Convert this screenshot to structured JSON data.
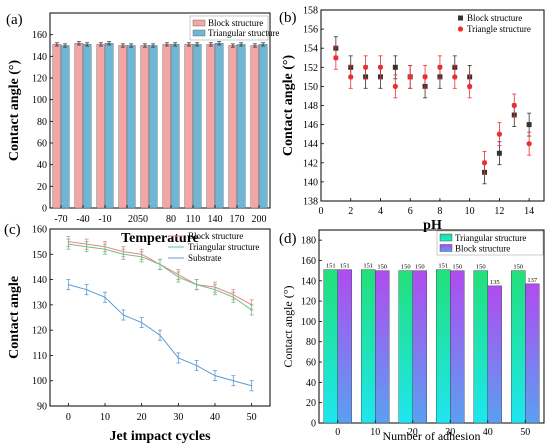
{
  "colors": {
    "block_bar": "#f4a5a5",
    "triangle_bar": "#6fb7d6",
    "block_marker": "#333333",
    "triangle_marker": "#e83030",
    "substrate_line": "#5b9bd5",
    "block_line": "#f08080",
    "triangle_line": "#6dbf8b",
    "triangle_grad_top": "#22e07a",
    "triangle_grad_bottom": "#1ee6f0",
    "block_grad_top": "#b04cf0",
    "block_grad_bottom": "#5aa0f0"
  },
  "chart_data": [
    {
      "panel": "(a)",
      "type": "bar",
      "xlabel": "Temperature",
      "ylabel": "Contact angle (°)",
      "categories": [
        "-70",
        "-40",
        "-10",
        "20",
        "50",
        "80",
        "110",
        "140",
        "170",
        "200"
      ],
      "category_display": [
        "-70",
        "-40",
        "-10",
        "2050",
        "80",
        "110",
        "140",
        "170",
        "200"
      ],
      "series": [
        {
          "name": "Block structure",
          "values": [
            151,
            152,
            151,
            150,
            150,
            151,
            151,
            151,
            150,
            150
          ],
          "errors": [
            1.5,
            1.5,
            1.5,
            1.5,
            1.5,
            1.5,
            1.5,
            1.5,
            1.5,
            1.5
          ]
        },
        {
          "name": "Triangular structure",
          "values": [
            150,
            151,
            152,
            150,
            150,
            151,
            151,
            152,
            151,
            151
          ],
          "errors": [
            1.5,
            1.5,
            1.5,
            1.5,
            1.5,
            1.5,
            1.5,
            1.5,
            1.5,
            1.5
          ]
        }
      ],
      "ylim": [
        0,
        180
      ],
      "yticks": [
        0,
        20,
        40,
        60,
        80,
        100,
        120,
        140,
        160
      ],
      "legend": "top-right"
    },
    {
      "panel": "(b)",
      "type": "scatter",
      "xlabel": "pH",
      "ylabel": "Contact angle (°)",
      "xlim": [
        0,
        15
      ],
      "ylim": [
        138,
        158
      ],
      "xticks": [
        0,
        2,
        4,
        6,
        8,
        10,
        12,
        14
      ],
      "yticks": [
        138,
        140,
        142,
        144,
        146,
        148,
        150,
        152,
        154,
        156,
        158
      ],
      "series": [
        {
          "name": "Block structure",
          "x": [
            1,
            2,
            3,
            4,
            5,
            6,
            7,
            8,
            9,
            10,
            11,
            12,
            13,
            14
          ],
          "values": [
            154,
            152,
            151,
            151,
            152,
            151,
            150,
            151,
            152,
            151,
            141,
            143,
            147,
            146
          ],
          "errors": [
            1.2,
            1.2,
            1.2,
            1.2,
            1.2,
            1.2,
            1.2,
            1.2,
            1.2,
            1.2,
            1.2,
            1.2,
            1.2,
            1.2
          ]
        },
        {
          "name": "Triangle structure",
          "x": [
            1,
            2,
            3,
            4,
            5,
            6,
            7,
            8,
            9,
            10,
            11,
            12,
            13,
            14
          ],
          "values": [
            153,
            151,
            152,
            152,
            150,
            151,
            151,
            152,
            151,
            150,
            142,
            145,
            148,
            144
          ],
          "errors": [
            1.2,
            1.2,
            1.2,
            1.2,
            1.2,
            1.2,
            1.2,
            1.2,
            1.2,
            1.2,
            1.2,
            1.2,
            1.2,
            1.2
          ]
        }
      ],
      "legend": "top-right"
    },
    {
      "panel": "(c)",
      "type": "line",
      "xlabel": "Jet impact cycles",
      "ylabel": "Contact angle",
      "xlim": [
        -5,
        55
      ],
      "ylim": [
        90,
        160
      ],
      "xticks": [
        0,
        10,
        20,
        30,
        40,
        50
      ],
      "yticks": [
        90,
        100,
        110,
        120,
        130,
        140,
        150,
        160
      ],
      "x": [
        0,
        5,
        10,
        15,
        20,
        25,
        30,
        35,
        40,
        45,
        50
      ],
      "series": [
        {
          "name": "Block structure",
          "values": [
            155,
            154,
            153,
            151,
            150,
            146,
            142,
            138,
            137,
            134,
            130
          ],
          "errors": [
            2,
            2,
            2,
            2,
            2,
            2,
            2,
            2,
            2,
            2,
            2
          ]
        },
        {
          "name": "Triangular structure",
          "values": [
            154,
            153,
            152,
            150,
            149,
            146,
            141,
            138,
            136,
            133,
            128
          ],
          "errors": [
            2,
            2,
            2,
            2,
            2,
            2,
            2,
            2,
            2,
            2,
            2
          ]
        },
        {
          "name": "Substrate",
          "values": [
            138,
            136,
            133,
            126,
            123,
            118,
            109,
            106,
            102,
            100,
            98
          ],
          "errors": [
            2,
            2,
            2,
            2,
            2,
            2,
            2,
            2,
            2,
            2,
            2
          ]
        }
      ],
      "legend": "top-right"
    },
    {
      "panel": "(d)",
      "type": "bar",
      "xlabel": "Number of adhesion",
      "ylabel": "Contact angle (°)",
      "categories": [
        "0",
        "10",
        "20",
        "30",
        "40",
        "50"
      ],
      "series": [
        {
          "name": "Triangular structure",
          "values": [
            151,
            151,
            150,
            151,
            150,
            150
          ]
        },
        {
          "name": "Block structure",
          "values": [
            151,
            150,
            150,
            150,
            135,
            137
          ]
        }
      ],
      "ylim": [
        0,
        190
      ],
      "yticks": [
        0,
        20,
        40,
        60,
        80,
        100,
        120,
        140,
        160,
        180
      ],
      "legend": "top-right"
    }
  ]
}
